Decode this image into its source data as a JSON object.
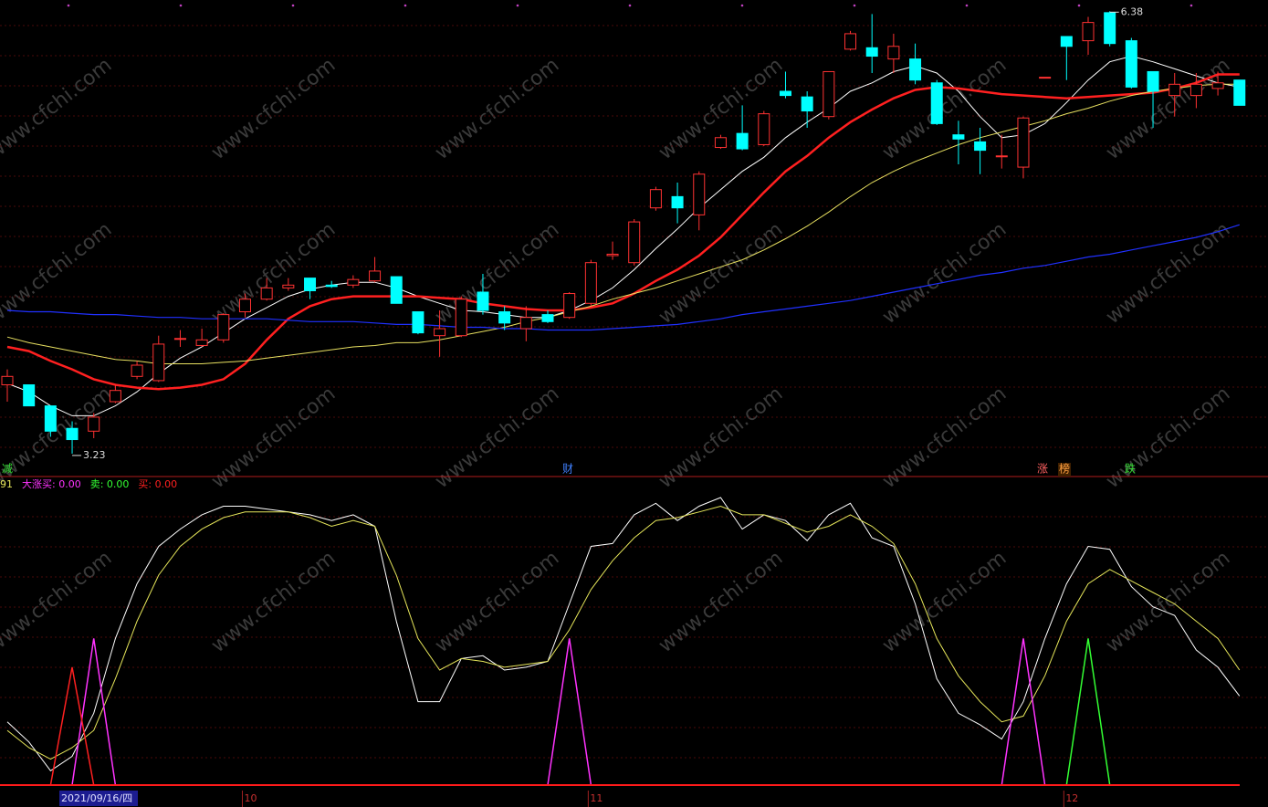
{
  "watermark": "www.cfchi.com",
  "chart_data": [
    {
      "type": "candlestick",
      "ylim": [
        3.08,
        6.46
      ],
      "up_color": "#ff3232",
      "down_color": "#00ffff",
      "open": [
        3.72,
        3.72,
        3.57,
        3.41,
        3.39,
        3.6,
        3.78,
        3.75,
        4.05,
        4.0,
        4.04,
        4.24,
        4.33,
        4.41,
        4.48,
        4.43,
        4.43,
        4.46,
        4.49,
        4.24,
        4.07,
        4.07,
        4.38,
        4.24,
        4.12,
        4.22,
        4.2,
        4.3,
        4.64,
        4.59,
        4.98,
        5.06,
        4.93,
        5.41,
        5.51,
        5.43,
        5.81,
        5.77,
        5.63,
        6.11,
        6.12,
        6.04,
        6.04,
        5.87,
        5.5,
        5.45,
        5.35,
        5.27,
        5.91,
        6.2,
        6.17,
        6.37,
        6.17,
        5.95,
        5.78,
        5.78,
        5.83,
        5.89
      ],
      "high": [
        3.83,
        3.72,
        3.57,
        3.46,
        3.52,
        3.72,
        3.89,
        4.07,
        4.11,
        4.12,
        4.23,
        4.37,
        4.48,
        4.48,
        4.48,
        4.46,
        4.5,
        4.63,
        4.49,
        4.24,
        4.25,
        4.35,
        4.51,
        4.28,
        4.28,
        4.25,
        4.38,
        4.61,
        4.74,
        4.9,
        5.13,
        5.16,
        5.24,
        5.5,
        5.71,
        5.67,
        5.95,
        5.81,
        5.95,
        6.24,
        6.36,
        6.22,
        6.15,
        5.89,
        5.6,
        5.55,
        5.5,
        5.63,
        5.91,
        6.2,
        6.34,
        6.38,
        6.19,
        5.95,
        5.94,
        5.94,
        5.95,
        5.89
      ],
      "low": [
        3.6,
        3.57,
        3.35,
        3.23,
        3.34,
        3.59,
        3.76,
        3.74,
        3.99,
        3.99,
        4.02,
        4.2,
        4.32,
        4.39,
        4.33,
        4.41,
        4.41,
        4.45,
        4.3,
        4.08,
        3.92,
        4.06,
        4.22,
        4.11,
        4.03,
        4.16,
        4.19,
        4.28,
        4.61,
        4.57,
        4.96,
        4.87,
        4.82,
        5.4,
        5.39,
        5.42,
        5.76,
        5.55,
        5.61,
        6.1,
        5.94,
        5.94,
        5.86,
        5.57,
        5.29,
        5.22,
        5.26,
        5.19,
        5.91,
        5.89,
        6.07,
        6.13,
        5.83,
        5.55,
        5.63,
        5.69,
        5.78,
        5.71
      ],
      "close": [
        3.78,
        3.57,
        3.39,
        3.33,
        3.49,
        3.68,
        3.86,
        4.01,
        4.05,
        4.04,
        4.22,
        4.33,
        4.41,
        4.43,
        4.39,
        4.42,
        4.47,
        4.53,
        4.3,
        4.09,
        4.12,
        4.33,
        4.25,
        4.16,
        4.2,
        4.17,
        4.37,
        4.59,
        4.65,
        4.88,
        5.11,
        4.98,
        5.22,
        5.48,
        5.4,
        5.65,
        5.78,
        5.67,
        5.95,
        6.22,
        6.06,
        6.13,
        5.89,
        5.58,
        5.47,
        5.39,
        5.35,
        5.62,
        5.91,
        6.13,
        6.3,
        6.15,
        5.84,
        5.81,
        5.86,
        5.86,
        5.87,
        5.71
      ],
      "series": [
        {
          "color": "#ffffff",
          "width": 1,
          "values": [
            3.73,
            3.67,
            3.57,
            3.5,
            3.5,
            3.57,
            3.67,
            3.8,
            3.91,
            3.99,
            4.09,
            4.19,
            4.27,
            4.35,
            4.4,
            4.43,
            4.45,
            4.45,
            4.41,
            4.35,
            4.3,
            4.25,
            4.24,
            4.22,
            4.2,
            4.2,
            4.25,
            4.32,
            4.41,
            4.54,
            4.69,
            4.83,
            4.98,
            5.11,
            5.24,
            5.34,
            5.48,
            5.59,
            5.69,
            5.81,
            5.87,
            5.95,
            5.99,
            5.94,
            5.81,
            5.63,
            5.48,
            5.5,
            5.58,
            5.73,
            5.89,
            6.02,
            6.06,
            6.02,
            5.97,
            5.92,
            5.87,
            5.84
          ]
        },
        {
          "color": "#ff2020",
          "width": 2.5,
          "values": [
            3.99,
            3.96,
            3.89,
            3.83,
            3.76,
            3.72,
            3.7,
            3.69,
            3.7,
            3.72,
            3.76,
            3.87,
            4.04,
            4.19,
            4.28,
            4.33,
            4.35,
            4.35,
            4.35,
            4.35,
            4.34,
            4.33,
            4.3,
            4.28,
            4.26,
            4.25,
            4.25,
            4.27,
            4.3,
            4.37,
            4.46,
            4.54,
            4.64,
            4.77,
            4.93,
            5.09,
            5.24,
            5.35,
            5.48,
            5.59,
            5.68,
            5.76,
            5.82,
            5.84,
            5.83,
            5.81,
            5.79,
            5.78,
            5.77,
            5.76,
            5.77,
            5.78,
            5.79,
            5.8,
            5.83,
            5.87,
            5.93,
            5.93
          ]
        },
        {
          "color": "#e8e060",
          "width": 1,
          "values": [
            4.06,
            4.02,
            3.99,
            3.96,
            3.93,
            3.9,
            3.89,
            3.87,
            3.87,
            3.87,
            3.88,
            3.89,
            3.91,
            3.93,
            3.95,
            3.97,
            3.99,
            4.0,
            4.02,
            4.02,
            4.04,
            4.07,
            4.1,
            4.13,
            4.17,
            4.2,
            4.24,
            4.28,
            4.33,
            4.37,
            4.41,
            4.46,
            4.51,
            4.56,
            4.61,
            4.68,
            4.76,
            4.85,
            4.95,
            5.06,
            5.16,
            5.24,
            5.31,
            5.37,
            5.43,
            5.48,
            5.52,
            5.56,
            5.6,
            5.65,
            5.69,
            5.74,
            5.78,
            5.81,
            5.83,
            5.85,
            5.86,
            5.86
          ]
        },
        {
          "color": "#2030ff",
          "width": 1.2,
          "values": [
            4.25,
            4.24,
            4.24,
            4.23,
            4.22,
            4.22,
            4.21,
            4.2,
            4.2,
            4.19,
            4.19,
            4.19,
            4.19,
            4.18,
            4.17,
            4.17,
            4.17,
            4.16,
            4.15,
            4.15,
            4.14,
            4.13,
            4.13,
            4.12,
            4.12,
            4.11,
            4.11,
            4.11,
            4.12,
            4.13,
            4.14,
            4.15,
            4.17,
            4.19,
            4.22,
            4.24,
            4.26,
            4.28,
            4.3,
            4.32,
            4.35,
            4.38,
            4.41,
            4.44,
            4.47,
            4.5,
            4.52,
            4.55,
            4.57,
            4.6,
            4.63,
            4.65,
            4.68,
            4.71,
            4.74,
            4.77,
            4.81,
            4.86
          ]
        }
      ],
      "annotations": [
        "减",
        "财",
        "涨",
        "榜",
        "跌"
      ]
    },
    {
      "type": "line",
      "ylim": [
        0,
        100
      ],
      "categories": [
        null,
        null,
        null,
        "2021/09/16/四",
        null,
        null,
        null,
        null,
        null,
        null,
        null,
        "10",
        null,
        null,
        null,
        null,
        null,
        null,
        null,
        null,
        null,
        null,
        null,
        null,
        null,
        null,
        null,
        "11",
        null,
        null,
        null,
        null,
        null,
        null,
        null,
        null,
        null,
        null,
        null,
        null,
        null,
        null,
        null,
        null,
        null,
        null,
        null,
        null,
        null,
        "12",
        null,
        null,
        null,
        null,
        null,
        null,
        null,
        null
      ],
      "series": [
        {
          "color": "#ffffff",
          "values": [
            22,
            15,
            5,
            10,
            25,
            51,
            70,
            83,
            89,
            94,
            97,
            97,
            96,
            95,
            94,
            92,
            94,
            90,
            57,
            29,
            29,
            44,
            45,
            40,
            41,
            43,
            63,
            83,
            84,
            94,
            98,
            92,
            97,
            100,
            89,
            94,
            92,
            85,
            94,
            98,
            86,
            83,
            63,
            37,
            25,
            21,
            16,
            29,
            51,
            70,
            83,
            82,
            69,
            62,
            59,
            47,
            41,
            31
          ]
        },
        {
          "name": "91",
          "color": "#e6e65a",
          "values": [
            19,
            13,
            9,
            13,
            19,
            37,
            57,
            73,
            83,
            89,
            93,
            95,
            95,
            95,
            93,
            90,
            92,
            90,
            73,
            51,
            40,
            44,
            43,
            41,
            42,
            43,
            54,
            68,
            78,
            86,
            92,
            93,
            95,
            97,
            94,
            94,
            91,
            88,
            90,
            94,
            90,
            84,
            70,
            51,
            38,
            29,
            22,
            24,
            38,
            57,
            70,
            75,
            71,
            67,
            63,
            57,
            51,
            40
          ]
        },
        {
          "name": "大涨买",
          "current_label": ": 0.00",
          "color": "#ff33ff",
          "spike": true,
          "values": [
            0,
            0,
            0,
            0,
            51,
            0,
            0,
            0,
            0,
            0,
            0,
            0,
            0,
            0,
            0,
            0,
            0,
            0,
            0,
            0,
            0,
            0,
            0,
            0,
            0,
            0,
            51,
            0,
            0,
            0,
            0,
            0,
            0,
            0,
            0,
            0,
            0,
            0,
            0,
            0,
            0,
            0,
            0,
            0,
            0,
            0,
            0,
            51,
            0,
            0,
            0,
            0,
            0,
            0,
            0,
            0,
            0,
            0
          ]
        },
        {
          "name": "卖",
          "current_label": ": 0.00",
          "color": "#33ff33",
          "spike": true,
          "values": [
            0,
            0,
            0,
            0,
            0,
            0,
            0,
            0,
            0,
            0,
            0,
            0,
            0,
            0,
            0,
            0,
            0,
            0,
            0,
            0,
            0,
            0,
            0,
            0,
            0,
            0,
            0,
            0,
            0,
            0,
            0,
            0,
            0,
            0,
            0,
            0,
            0,
            0,
            0,
            0,
            0,
            0,
            0,
            0,
            0,
            0,
            0,
            0,
            0,
            0,
            51,
            0,
            0,
            0,
            0,
            0,
            0,
            0
          ]
        },
        {
          "name": "买",
          "current_label": ": 0.00",
          "color": "#ff2020",
          "spike": true,
          "values": [
            0,
            0,
            0,
            41,
            0,
            0,
            0,
            0,
            0,
            0,
            0,
            0,
            0,
            0,
            0,
            0,
            0,
            0,
            0,
            0,
            0,
            0,
            0,
            0,
            0,
            0,
            0,
            0,
            0,
            0,
            0,
            0,
            0,
            0,
            0,
            0,
            0,
            0,
            0,
            0,
            0,
            0,
            0,
            0,
            0,
            0,
            0,
            0,
            0,
            0,
            0,
            0,
            0,
            0,
            0,
            0,
            0,
            0
          ]
        }
      ]
    }
  ]
}
